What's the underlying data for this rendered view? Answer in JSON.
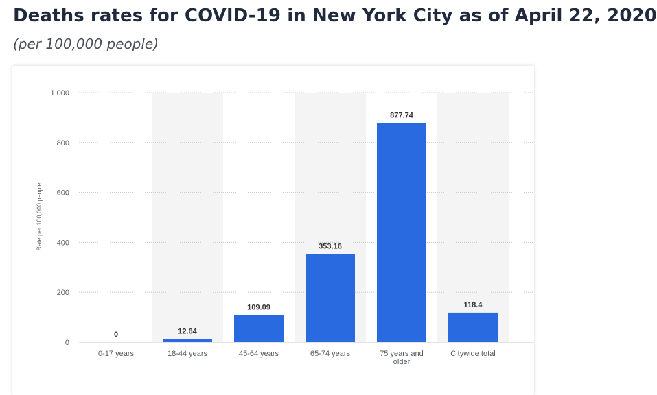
{
  "header": {
    "title": "Deaths rates for COVID-19 in New York City as of April 22, 2020",
    "subtitle": "(per 100,000 people)"
  },
  "colors": {
    "bar": "#2a6ae0",
    "band": "#f4f4f4",
    "grid": "#c8c8c8"
  },
  "chart_data": {
    "type": "bar",
    "title": "Deaths rates for COVID-19 in New York City as of April 22, 2020",
    "subtitle": "(per 100,000 people)",
    "xlabel": "",
    "ylabel": "Rate per 100,000 people",
    "categories": [
      [
        "0-17 years"
      ],
      [
        "18-44 years"
      ],
      [
        "45-64 years"
      ],
      [
        "65-74 years"
      ],
      [
        "75 years and",
        "older"
      ],
      [
        "Citywide total"
      ]
    ],
    "values": [
      0,
      12.64,
      109.09,
      353.16,
      877.74,
      118.4
    ],
    "value_labels": [
      "0",
      "12.64",
      "109.09",
      "353.16",
      "877.74",
      "118.4"
    ],
    "ylim": [
      0,
      1000
    ],
    "yticks": [
      0,
      200,
      400,
      600,
      800,
      1000
    ],
    "ytick_labels": [
      "0",
      "200",
      "400",
      "600",
      "800",
      "1 000"
    ],
    "grid": true,
    "alternating_bands": true
  }
}
